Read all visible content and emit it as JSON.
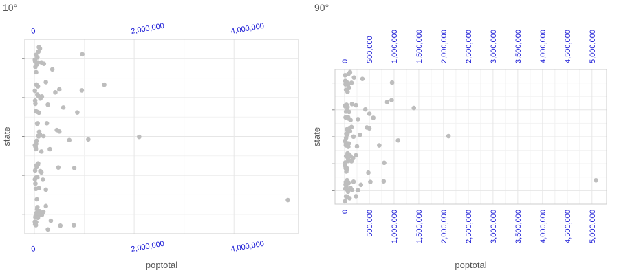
{
  "chart_data": [
    {
      "type": "scatter",
      "title": "10°",
      "xlabel": "poptotal",
      "ylabel": "state",
      "x_tick_rotation_deg": 10,
      "xlim": [
        0,
        5100000
      ],
      "x_ticks": [
        0,
        2000000,
        4000000
      ],
      "x_tick_labels": [
        "0",
        "2,000,000",
        "4,000,000"
      ],
      "y_categories": 5,
      "grid": true,
      "series": [
        {
          "points": [
            {
              "x": 10000,
              "y": 1
            },
            {
              "x": 25000,
              "y": 1
            },
            {
              "x": 45000,
              "y": 1
            },
            {
              "x": 60000,
              "y": 1
            },
            {
              "x": 15000,
              "y": 1
            },
            {
              "x": 35000,
              "y": 1
            },
            {
              "x": 80000,
              "y": 1
            },
            {
              "x": 120000,
              "y": 1
            },
            {
              "x": 150000,
              "y": 1
            },
            {
              "x": 50000,
              "y": 1
            },
            {
              "x": 20000,
              "y": 1
            },
            {
              "x": 70000,
              "y": 1
            },
            {
              "x": 100000,
              "y": 1
            },
            {
              "x": 30000,
              "y": 1
            },
            {
              "x": 55000,
              "y": 1
            },
            {
              "x": 180000,
              "y": 1
            },
            {
              "x": 230000,
              "y": 1
            },
            {
              "x": 270000,
              "y": 1
            },
            {
              "x": 330000,
              "y": 1
            },
            {
              "x": 520000,
              "y": 1
            },
            {
              "x": 790000,
              "y": 1
            },
            {
              "x": 5080000,
              "y": 1
            },
            {
              "x": 10000,
              "y": 2
            },
            {
              "x": 30000,
              "y": 2
            },
            {
              "x": 50000,
              "y": 2
            },
            {
              "x": 20000,
              "y": 2
            },
            {
              "x": 70000,
              "y": 2
            },
            {
              "x": 90000,
              "y": 2
            },
            {
              "x": 40000,
              "y": 2
            },
            {
              "x": 15000,
              "y": 2
            },
            {
              "x": 60000,
              "y": 2
            },
            {
              "x": 120000,
              "y": 2
            },
            {
              "x": 140000,
              "y": 2
            },
            {
              "x": 35000,
              "y": 2
            },
            {
              "x": 75000,
              "y": 2
            },
            {
              "x": 170000,
              "y": 2
            },
            {
              "x": 230000,
              "y": 2
            },
            {
              "x": 480000,
              "y": 2
            },
            {
              "x": 800000,
              "y": 2
            },
            {
              "x": 10000,
              "y": 3
            },
            {
              "x": 25000,
              "y": 3
            },
            {
              "x": 45000,
              "y": 3
            },
            {
              "x": 65000,
              "y": 3
            },
            {
              "x": 85000,
              "y": 3
            },
            {
              "x": 20000,
              "y": 3
            },
            {
              "x": 35000,
              "y": 3
            },
            {
              "x": 55000,
              "y": 3
            },
            {
              "x": 110000,
              "y": 3
            },
            {
              "x": 140000,
              "y": 3
            },
            {
              "x": 30000,
              "y": 3
            },
            {
              "x": 75000,
              "y": 3
            },
            {
              "x": 95000,
              "y": 3
            },
            {
              "x": 180000,
              "y": 3
            },
            {
              "x": 250000,
              "y": 3
            },
            {
              "x": 310000,
              "y": 3
            },
            {
              "x": 450000,
              "y": 3
            },
            {
              "x": 500000,
              "y": 3
            },
            {
              "x": 700000,
              "y": 3
            },
            {
              "x": 1080000,
              "y": 3
            },
            {
              "x": 2100000,
              "y": 3
            },
            {
              "x": 10000,
              "y": 4
            },
            {
              "x": 30000,
              "y": 4
            },
            {
              "x": 50000,
              "y": 4
            },
            {
              "x": 70000,
              "y": 4
            },
            {
              "x": 20000,
              "y": 4
            },
            {
              "x": 40000,
              "y": 4
            },
            {
              "x": 90000,
              "y": 4
            },
            {
              "x": 120000,
              "y": 4
            },
            {
              "x": 60000,
              "y": 4
            },
            {
              "x": 15000,
              "y": 4
            },
            {
              "x": 80000,
              "y": 4
            },
            {
              "x": 150000,
              "y": 4
            },
            {
              "x": 230000,
              "y": 4
            },
            {
              "x": 270000,
              "y": 4
            },
            {
              "x": 420000,
              "y": 4
            },
            {
              "x": 500000,
              "y": 4
            },
            {
              "x": 580000,
              "y": 4
            },
            {
              "x": 860000,
              "y": 4
            },
            {
              "x": 950000,
              "y": 4
            },
            {
              "x": 1400000,
              "y": 4
            },
            {
              "x": 10000,
              "y": 5
            },
            {
              "x": 30000,
              "y": 5
            },
            {
              "x": 50000,
              "y": 5
            },
            {
              "x": 20000,
              "y": 5
            },
            {
              "x": 70000,
              "y": 5
            },
            {
              "x": 40000,
              "y": 5
            },
            {
              "x": 90000,
              "y": 5
            },
            {
              "x": 60000,
              "y": 5
            },
            {
              "x": 15000,
              "y": 5
            },
            {
              "x": 110000,
              "y": 5
            },
            {
              "x": 80000,
              "y": 5
            },
            {
              "x": 35000,
              "y": 5
            },
            {
              "x": 140000,
              "y": 5
            },
            {
              "x": 190000,
              "y": 5
            },
            {
              "x": 360000,
              "y": 5
            },
            {
              "x": 960000,
              "y": 5
            }
          ]
        }
      ]
    },
    {
      "type": "scatter",
      "title": "90°",
      "xlabel": "poptotal",
      "ylabel": "state",
      "x_tick_rotation_deg": 90,
      "xlim": [
        0,
        5100000
      ],
      "x_ticks": [
        0,
        500000,
        1000000,
        1500000,
        2000000,
        2500000,
        3000000,
        3500000,
        4000000,
        4500000,
        5000000
      ],
      "x_tick_labels": [
        "0",
        "500,000",
        "1,000,000",
        "1,500,000",
        "2,000,000",
        "2,500,000",
        "3,000,000",
        "3,500,000",
        "4,000,000",
        "4,500,000",
        "5,000,000"
      ],
      "y_categories": 5,
      "grid": true,
      "series": [
        {
          "points": [
            {
              "x": 10000,
              "y": 1
            },
            {
              "x": 25000,
              "y": 1
            },
            {
              "x": 45000,
              "y": 1
            },
            {
              "x": 60000,
              "y": 1
            },
            {
              "x": 15000,
              "y": 1
            },
            {
              "x": 35000,
              "y": 1
            },
            {
              "x": 80000,
              "y": 1
            },
            {
              "x": 120000,
              "y": 1
            },
            {
              "x": 150000,
              "y": 1
            },
            {
              "x": 50000,
              "y": 1
            },
            {
              "x": 20000,
              "y": 1
            },
            {
              "x": 70000,
              "y": 1
            },
            {
              "x": 100000,
              "y": 1
            },
            {
              "x": 30000,
              "y": 1
            },
            {
              "x": 55000,
              "y": 1
            },
            {
              "x": 180000,
              "y": 1
            },
            {
              "x": 230000,
              "y": 1
            },
            {
              "x": 270000,
              "y": 1
            },
            {
              "x": 330000,
              "y": 1
            },
            {
              "x": 520000,
              "y": 1
            },
            {
              "x": 790000,
              "y": 1
            },
            {
              "x": 5080000,
              "y": 1
            },
            {
              "x": 10000,
              "y": 2
            },
            {
              "x": 30000,
              "y": 2
            },
            {
              "x": 50000,
              "y": 2
            },
            {
              "x": 20000,
              "y": 2
            },
            {
              "x": 70000,
              "y": 2
            },
            {
              "x": 90000,
              "y": 2
            },
            {
              "x": 40000,
              "y": 2
            },
            {
              "x": 15000,
              "y": 2
            },
            {
              "x": 60000,
              "y": 2
            },
            {
              "x": 120000,
              "y": 2
            },
            {
              "x": 140000,
              "y": 2
            },
            {
              "x": 35000,
              "y": 2
            },
            {
              "x": 75000,
              "y": 2
            },
            {
              "x": 170000,
              "y": 2
            },
            {
              "x": 230000,
              "y": 2
            },
            {
              "x": 480000,
              "y": 2
            },
            {
              "x": 800000,
              "y": 2
            },
            {
              "x": 10000,
              "y": 3
            },
            {
              "x": 25000,
              "y": 3
            },
            {
              "x": 45000,
              "y": 3
            },
            {
              "x": 65000,
              "y": 3
            },
            {
              "x": 85000,
              "y": 3
            },
            {
              "x": 20000,
              "y": 3
            },
            {
              "x": 35000,
              "y": 3
            },
            {
              "x": 55000,
              "y": 3
            },
            {
              "x": 110000,
              "y": 3
            },
            {
              "x": 140000,
              "y": 3
            },
            {
              "x": 30000,
              "y": 3
            },
            {
              "x": 75000,
              "y": 3
            },
            {
              "x": 95000,
              "y": 3
            },
            {
              "x": 180000,
              "y": 3
            },
            {
              "x": 250000,
              "y": 3
            },
            {
              "x": 310000,
              "y": 3
            },
            {
              "x": 450000,
              "y": 3
            },
            {
              "x": 500000,
              "y": 3
            },
            {
              "x": 700000,
              "y": 3
            },
            {
              "x": 1080000,
              "y": 3
            },
            {
              "x": 2100000,
              "y": 3
            },
            {
              "x": 10000,
              "y": 4
            },
            {
              "x": 30000,
              "y": 4
            },
            {
              "x": 50000,
              "y": 4
            },
            {
              "x": 70000,
              "y": 4
            },
            {
              "x": 20000,
              "y": 4
            },
            {
              "x": 40000,
              "y": 4
            },
            {
              "x": 90000,
              "y": 4
            },
            {
              "x": 120000,
              "y": 4
            },
            {
              "x": 60000,
              "y": 4
            },
            {
              "x": 15000,
              "y": 4
            },
            {
              "x": 80000,
              "y": 4
            },
            {
              "x": 150000,
              "y": 4
            },
            {
              "x": 230000,
              "y": 4
            },
            {
              "x": 270000,
              "y": 4
            },
            {
              "x": 420000,
              "y": 4
            },
            {
              "x": 500000,
              "y": 4
            },
            {
              "x": 580000,
              "y": 4
            },
            {
              "x": 860000,
              "y": 4
            },
            {
              "x": 950000,
              "y": 4
            },
            {
              "x": 1400000,
              "y": 4
            },
            {
              "x": 10000,
              "y": 5
            },
            {
              "x": 30000,
              "y": 5
            },
            {
              "x": 50000,
              "y": 5
            },
            {
              "x": 20000,
              "y": 5
            },
            {
              "x": 70000,
              "y": 5
            },
            {
              "x": 40000,
              "y": 5
            },
            {
              "x": 90000,
              "y": 5
            },
            {
              "x": 60000,
              "y": 5
            },
            {
              "x": 15000,
              "y": 5
            },
            {
              "x": 110000,
              "y": 5
            },
            {
              "x": 80000,
              "y": 5
            },
            {
              "x": 35000,
              "y": 5
            },
            {
              "x": 140000,
              "y": 5
            },
            {
              "x": 190000,
              "y": 5
            },
            {
              "x": 360000,
              "y": 5
            },
            {
              "x": 960000,
              "y": 5
            }
          ]
        }
      ]
    }
  ],
  "colors": {
    "point": "#bdbdbd",
    "tick_label": "#1a1ad6",
    "title": "#555555",
    "grid": "#e6e6e6",
    "frame": "#cccccc"
  }
}
